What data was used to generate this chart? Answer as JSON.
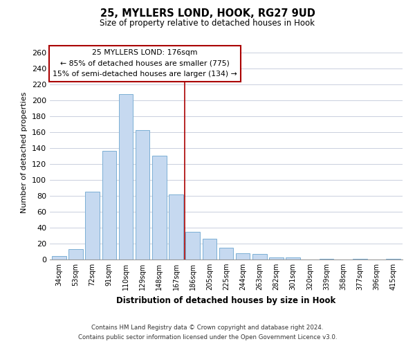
{
  "title": "25, MYLLERS LOND, HOOK, RG27 9UD",
  "subtitle": "Size of property relative to detached houses in Hook",
  "xlabel": "Distribution of detached houses by size in Hook",
  "ylabel": "Number of detached properties",
  "bar_color": "#c6d9f0",
  "bar_edge_color": "#7bafd4",
  "categories": [
    "34sqm",
    "53sqm",
    "72sqm",
    "91sqm",
    "110sqm",
    "129sqm",
    "148sqm",
    "167sqm",
    "186sqm",
    "205sqm",
    "225sqm",
    "244sqm",
    "263sqm",
    "282sqm",
    "301sqm",
    "320sqm",
    "339sqm",
    "358sqm",
    "377sqm",
    "396sqm",
    "415sqm"
  ],
  "values": [
    4,
    13,
    85,
    137,
    208,
    163,
    131,
    82,
    35,
    26,
    15,
    8,
    7,
    3,
    3,
    0,
    1,
    0,
    1,
    0,
    1
  ],
  "ylim": [
    0,
    270
  ],
  "yticks": [
    0,
    20,
    40,
    60,
    80,
    100,
    120,
    140,
    160,
    180,
    200,
    220,
    240,
    260
  ],
  "vline_x": 7.5,
  "vline_color": "#aa0000",
  "annotation_title": "25 MYLLERS LOND: 176sqm",
  "annotation_line1": "← 85% of detached houses are smaller (775)",
  "annotation_line2": "15% of semi-detached houses are larger (134) →",
  "annotation_box_color": "#ffffff",
  "annotation_box_edge": "#aa0000",
  "footnote1": "Contains HM Land Registry data © Crown copyright and database right 2024.",
  "footnote2": "Contains public sector information licensed under the Open Government Licence v3.0.",
  "background_color": "#ffffff",
  "grid_color": "#c0c8d8"
}
